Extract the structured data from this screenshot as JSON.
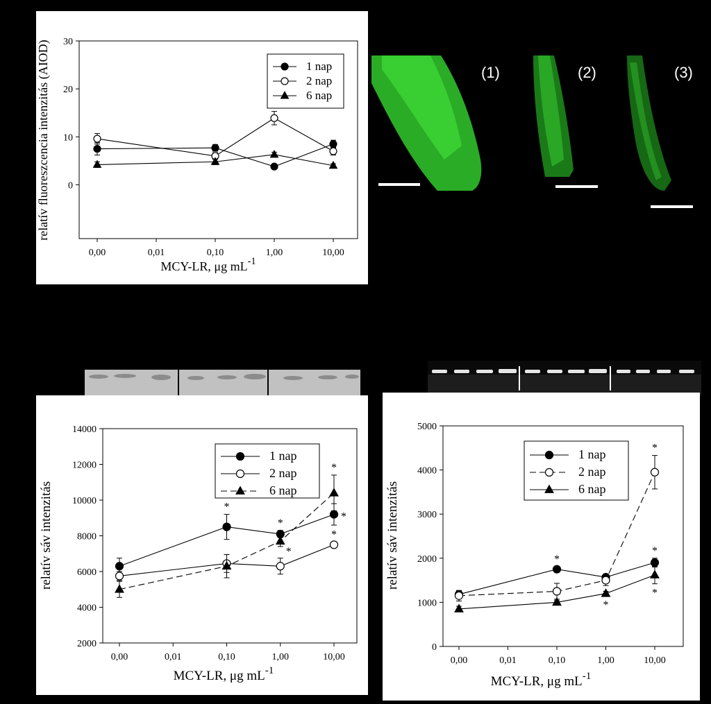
{
  "chart_data": [
    {
      "type": "line",
      "ylabel": "relatív fluoreszcencia intenzitás (AIOD)",
      "xlabel": "MCY-LR, μg mL",
      "xlabel_sup": "-1",
      "x_ticks": [
        "0,00",
        "0,01",
        "0,10",
        "1,00",
        "10,00"
      ],
      "x_positions": [
        0,
        1,
        2,
        3,
        4
      ],
      "ylim": [
        -5,
        30
      ],
      "y_ticks": [
        0,
        10,
        20,
        30
      ],
      "legend_position": "top-right",
      "series": [
        {
          "name": "1 nap",
          "marker": "filled-circle",
          "dash": "solid",
          "x": [
            0,
            2,
            3,
            4
          ],
          "values": [
            7.5,
            7.7,
            3.8,
            8.5
          ],
          "errors": [
            1.3,
            0.7,
            0.5,
            0.8
          ],
          "sig": [
            false,
            false,
            false,
            false
          ]
        },
        {
          "name": "2 nap",
          "marker": "open-circle",
          "dash": "solid",
          "x": [
            0,
            2,
            3,
            4
          ],
          "values": [
            9.6,
            6.0,
            13.9,
            7.0
          ],
          "errors": [
            1.1,
            0.7,
            1.4,
            0.8
          ],
          "sig": [
            false,
            false,
            false,
            false
          ]
        },
        {
          "name": "6 nap",
          "marker": "filled-triangle",
          "dash": "solid",
          "x": [
            0,
            2,
            3,
            4
          ],
          "values": [
            4.2,
            4.8,
            6.3,
            4.0
          ],
          "errors": [
            0.6,
            0.6,
            0.5,
            0.4
          ],
          "sig": [
            false,
            false,
            false,
            false
          ]
        }
      ]
    },
    {
      "type": "line",
      "ylabel": "relatív sáv intenzitás",
      "xlabel": "MCY-LR, μg mL",
      "xlabel_sup": "-1",
      "x_ticks": [
        "0,00",
        "0,01",
        "0,10",
        "1,00",
        "10,00"
      ],
      "x_positions": [
        0,
        1,
        2,
        3,
        4
      ],
      "ylim": [
        2000,
        14000
      ],
      "y_ticks": [
        2000,
        4000,
        6000,
        8000,
        10000,
        12000,
        14000
      ],
      "legend_position": "top-right",
      "series": [
        {
          "name": "1 nap",
          "marker": "filled-circle",
          "dash": "solid",
          "x": [
            0,
            2,
            3,
            4
          ],
          "values": [
            6300,
            8500,
            8100,
            9200
          ],
          "errors": [
            450,
            700,
            200,
            600
          ],
          "sig": [
            false,
            true,
            true,
            true
          ]
        },
        {
          "name": "2 nap",
          "marker": "open-circle",
          "dash": "solid",
          "x": [
            0,
            2,
            3,
            4
          ],
          "values": [
            5750,
            6450,
            6300,
            7500
          ],
          "errors": [
            250,
            500,
            450,
            150
          ],
          "sig": [
            false,
            false,
            false,
            true
          ]
        },
        {
          "name": "6 nap",
          "marker": "filled-triangle",
          "dash": "dashed",
          "x": [
            0,
            2,
            3,
            4
          ],
          "values": [
            5000,
            6300,
            7700,
            10400
          ],
          "errors": [
            450,
            650,
            300,
            1000
          ],
          "sig": [
            false,
            false,
            true,
            true
          ]
        }
      ]
    },
    {
      "type": "line",
      "ylabel": "relatív sáv intenzitás",
      "xlabel": "MCY-LR, μg mL",
      "xlabel_sup": "-1",
      "x_ticks": [
        "0,00",
        "0,01",
        "0,10",
        "1,00",
        "10,00"
      ],
      "x_positions": [
        0,
        1,
        2,
        3,
        4
      ],
      "ylim": [
        0,
        5000
      ],
      "y_ticks": [
        0,
        1000,
        2000,
        3000,
        4000,
        5000
      ],
      "legend_position": "top-right",
      "series": [
        {
          "name": "1 nap",
          "marker": "filled-circle",
          "dash": "solid",
          "x": [
            0,
            2,
            3,
            4
          ],
          "values": [
            1180,
            1750,
            1570,
            1900
          ],
          "errors": [
            80,
            60,
            60,
            100
          ],
          "sig": [
            false,
            true,
            false,
            true
          ]
        },
        {
          "name": "2 nap",
          "marker": "open-circle",
          "dash": "dashed",
          "x": [
            0,
            2,
            3,
            4
          ],
          "values": [
            1150,
            1250,
            1500,
            3950
          ],
          "errors": [
            120,
            180,
            120,
            380
          ],
          "sig": [
            false,
            false,
            false,
            true
          ]
        },
        {
          "name": "6 nap",
          "marker": "filled-triangle",
          "dash": "solid",
          "x": [
            0,
            2,
            3,
            4
          ],
          "values": [
            850,
            1000,
            1200,
            1620
          ],
          "errors": [
            60,
            40,
            50,
            200
          ],
          "sig": [
            false,
            false,
            true,
            true
          ]
        }
      ]
    }
  ],
  "sig_mark": "*",
  "micrographs": {
    "labels": [
      "(1)",
      "(2)",
      "(3)"
    ],
    "tissue_color": "#33cc33",
    "scale_bar_color": "#ffffff"
  },
  "gels": {
    "left_band_color": "#6a6a6a",
    "right_band_color": "#e6e6e6"
  }
}
